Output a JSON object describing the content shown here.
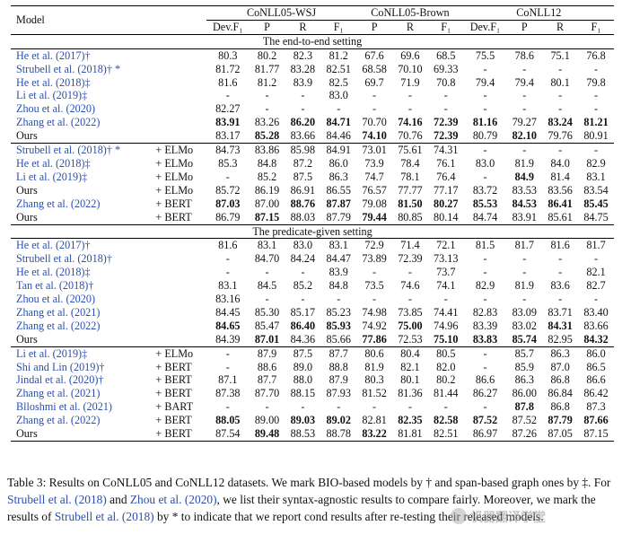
{
  "header": {
    "model": "Model",
    "groups": [
      "CoNLL05-WSJ",
      "CoNLL05-Brown",
      "CoNLL12"
    ],
    "cols": [
      "Dev.F₁",
      "P",
      "R",
      "F₁",
      "P",
      "R",
      "F₁",
      "Dev.F₁",
      "P",
      "R",
      "F₁"
    ]
  },
  "sections": [
    {
      "title": "The end-to-end setting",
      "blocks": [
        [
          {
            "model": "He et al. (2017)†",
            "ext": "",
            "blue": true,
            "cells": [
              "80.3",
              "80.2",
              "82.3",
              "81.2",
              "67.6",
              "69.6",
              "68.5",
              "75.5",
              "78.6",
              "75.1",
              "76.8"
            ],
            "bold": []
          },
          {
            "model": "Strubell et al. (2018)† *",
            "ext": "",
            "blue": true,
            "cells": [
              "81.72",
              "81.77",
              "83.28",
              "82.51",
              "68.58",
              "70.10",
              "69.33",
              "-",
              "-",
              "-",
              "-"
            ],
            "bold": []
          },
          {
            "model": "He et al. (2018)‡",
            "ext": "",
            "blue": true,
            "cells": [
              "81.6",
              "81.2",
              "83.9",
              "82.5",
              "69.7",
              "71.9",
              "70.8",
              "79.4",
              "79.4",
              "80.1",
              "79.8"
            ],
            "bold": []
          },
          {
            "model": "Li et al. (2019)‡",
            "ext": "",
            "blue": true,
            "cells": [
              "-",
              "-",
              "-",
              "83.0",
              "-",
              "-",
              "-",
              "-",
              "-",
              "-",
              "-"
            ],
            "bold": []
          },
          {
            "model": "Zhou et al. (2020)",
            "ext": "",
            "blue": true,
            "cells": [
              "82.27",
              "-",
              "-",
              "-",
              "-",
              "-",
              "-",
              "-",
              "-",
              "-",
              "-"
            ],
            "bold": []
          },
          {
            "model": "Zhang et al. (2022)",
            "ext": "",
            "blue": true,
            "cells": [
              "83.91",
              "83.26",
              "86.20",
              "84.71",
              "70.70",
              "74.16",
              "72.39",
              "81.16",
              "79.27",
              "83.24",
              "81.21"
            ],
            "bold": [
              0,
              2,
              3,
              5,
              6,
              7,
              9,
              10
            ]
          },
          {
            "model": "Ours",
            "ext": "",
            "blue": false,
            "cells": [
              "83.17",
              "85.28",
              "83.66",
              "84.46",
              "74.10",
              "70.76",
              "72.39",
              "80.79",
              "82.10",
              "79.76",
              "80.91"
            ],
            "bold": [
              1,
              4,
              6,
              8
            ]
          }
        ],
        [
          {
            "model": "Strubell et al. (2018)† *",
            "ext": "+ ELMo",
            "blue": true,
            "cells": [
              "84.73",
              "83.86",
              "85.98",
              "84.91",
              "73.01",
              "75.61",
              "74.31",
              "-",
              "-",
              "-",
              "-"
            ],
            "bold": []
          },
          {
            "model": "He et al. (2018)‡",
            "ext": "+ ELMo",
            "blue": true,
            "cells": [
              "85.3",
              "84.8",
              "87.2",
              "86.0",
              "73.9",
              "78.4",
              "76.1",
              "83.0",
              "81.9",
              "84.0",
              "82.9"
            ],
            "bold": []
          },
          {
            "model": "Li et al. (2019)‡",
            "ext": "+ ELMo",
            "blue": true,
            "cells": [
              "-",
              "85.2",
              "87.5",
              "86.3",
              "74.7",
              "78.1",
              "76.4",
              "-",
              "84.9",
              "81.4",
              "83.1"
            ],
            "bold": [
              8
            ]
          },
          {
            "model": "Ours",
            "ext": "+ ELMo",
            "blue": false,
            "cells": [
              "85.72",
              "86.19",
              "86.91",
              "86.55",
              "76.57",
              "77.77",
              "77.17",
              "83.72",
              "83.53",
              "83.56",
              "83.54"
            ],
            "bold": []
          },
          {
            "model": "Zhang et al. (2022)",
            "ext": "+ BERT",
            "blue": true,
            "cells": [
              "87.03",
              "87.00",
              "88.76",
              "87.87",
              "79.08",
              "81.50",
              "80.27",
              "85.53",
              "84.53",
              "86.41",
              "85.45"
            ],
            "bold": [
              0,
              2,
              3,
              5,
              6,
              7,
              8,
              9,
              10
            ]
          },
          {
            "model": "Ours",
            "ext": "+ BERT",
            "blue": false,
            "cells": [
              "86.79",
              "87.15",
              "88.03",
              "87.79",
              "79.44",
              "80.85",
              "80.14",
              "84.74",
              "83.91",
              "85.61",
              "84.75"
            ],
            "bold": [
              1,
              4
            ]
          }
        ]
      ]
    },
    {
      "title": "The predicate-given setting",
      "blocks": [
        [
          {
            "model": "He et al. (2017)†",
            "ext": "",
            "blue": true,
            "cells": [
              "81.6",
              "83.1",
              "83.0",
              "83.1",
              "72.9",
              "71.4",
              "72.1",
              "81.5",
              "81.7",
              "81.6",
              "81.7"
            ],
            "bold": []
          },
          {
            "model": "Strubell et al. (2018)†",
            "ext": "",
            "blue": true,
            "cells": [
              "-",
              "84.70",
              "84.24",
              "84.47",
              "73.89",
              "72.39",
              "73.13",
              "-",
              "-",
              "-",
              "-"
            ],
            "bold": []
          },
          {
            "model": "He et al. (2018)‡",
            "ext": "",
            "blue": true,
            "cells": [
              "-",
              "-",
              "-",
              "83.9",
              "-",
              "-",
              "73.7",
              "-",
              "-",
              "-",
              "82.1"
            ],
            "bold": []
          },
          {
            "model": "Tan et al. (2018)†",
            "ext": "",
            "blue": true,
            "cells": [
              "83.1",
              "84.5",
              "85.2",
              "84.8",
              "73.5",
              "74.6",
              "74.1",
              "82.9",
              "81.9",
              "83.6",
              "82.7"
            ],
            "bold": []
          },
          {
            "model": "Zhou et al. (2020)",
            "ext": "",
            "blue": true,
            "cells": [
              "83.16",
              "-",
              "-",
              "-",
              "-",
              "-",
              "-",
              "-",
              "-",
              "-",
              "-"
            ],
            "bold": []
          },
          {
            "model": "Zhang et al. (2021)",
            "ext": "",
            "blue": true,
            "cells": [
              "84.45",
              "85.30",
              "85.17",
              "85.23",
              "74.98",
              "73.85",
              "74.41",
              "82.83",
              "83.09",
              "83.71",
              "83.40"
            ],
            "bold": []
          },
          {
            "model": "Zhang et al. (2022)",
            "ext": "",
            "blue": true,
            "cells": [
              "84.65",
              "85.47",
              "86.40",
              "85.93",
              "74.92",
              "75.00",
              "74.96",
              "83.39",
              "83.02",
              "84.31",
              "83.66"
            ],
            "bold": [
              0,
              2,
              3,
              5,
              9
            ]
          },
          {
            "model": "Ours",
            "ext": "",
            "blue": false,
            "cells": [
              "84.39",
              "87.01",
              "84.36",
              "85.66",
              "77.86",
              "72.53",
              "75.10",
              "83.83",
              "85.74",
              "82.95",
              "84.32"
            ],
            "bold": [
              1,
              4,
              6,
              7,
              8,
              10
            ]
          }
        ],
        [
          {
            "model": "Li et al. (2019)‡",
            "ext": "+ ELMo",
            "blue": true,
            "cells": [
              "-",
              "87.9",
              "87.5",
              "87.7",
              "80.6",
              "80.4",
              "80.5",
              "-",
              "85.7",
              "86.3",
              "86.0"
            ],
            "bold": []
          },
          {
            "model": "Shi and Lin (2019)†",
            "ext": "+ BERT",
            "blue": true,
            "cells": [
              "-",
              "88.6",
              "89.0",
              "88.8",
              "81.9",
              "82.1",
              "82.0",
              "-",
              "85.9",
              "87.0",
              "86.5"
            ],
            "bold": []
          },
          {
            "model": "Jindal et al. (2020)†",
            "ext": "+ BERT",
            "blue": true,
            "cells": [
              "87.1",
              "87.7",
              "88.0",
              "87.9",
              "80.3",
              "80.1",
              "80.2",
              "86.6",
              "86.3",
              "86.8",
              "86.6"
            ],
            "bold": []
          },
          {
            "model": "Zhang et al. (2021)",
            "ext": "+ BERT",
            "blue": true,
            "cells": [
              "87.38",
              "87.70",
              "88.15",
              "87.93",
              "81.52",
              "81.36",
              "81.44",
              "86.27",
              "86.00",
              "86.84",
              "86.42"
            ],
            "bold": []
          },
          {
            "model": "Blloshmi et al. (2021)",
            "ext": "+ BART",
            "blue": true,
            "cells": [
              "-",
              "-",
              "-",
              "-",
              "-",
              "-",
              "-",
              "-",
              "87.8",
              "86.8",
              "87.3"
            ],
            "bold": [
              8
            ]
          },
          {
            "model": "Zhang et al. (2022)",
            "ext": "+ BERT",
            "blue": true,
            "cells": [
              "88.05",
              "89.00",
              "89.03",
              "89.02",
              "82.81",
              "82.35",
              "82.58",
              "87.52",
              "87.52",
              "87.79",
              "87.66"
            ],
            "bold": [
              0,
              2,
              3,
              5,
              6,
              7,
              9,
              10
            ]
          },
          {
            "model": "Ours",
            "ext": "+ BERT",
            "blue": false,
            "cells": [
              "87.54",
              "89.48",
              "88.53",
              "88.78",
              "83.22",
              "81.81",
              "82.51",
              "86.97",
              "87.26",
              "87.05",
              "87.15"
            ],
            "bold": [
              1,
              4
            ]
          }
        ]
      ]
    }
  ],
  "caption": {
    "p1": "Table 3: Results on CoNLL05 and CoNLL12 datasets. We mark BIO-based models by † and span-based graph ones by ‡. For ",
    "ref1": "Strubell et al. (2018)",
    "p2": " and ",
    "ref2": "Zhou et al. (2020)",
    "p3": ", we list their syntax-agnostic results to compare fairly. Moreover, we mark the results of ",
    "ref3": "Strubell et al. (2018)",
    "p4": " by * to indicate that we report con",
    "p5": "d results after re-testing their released models."
  },
  "watermark": "机器翻译学堂"
}
